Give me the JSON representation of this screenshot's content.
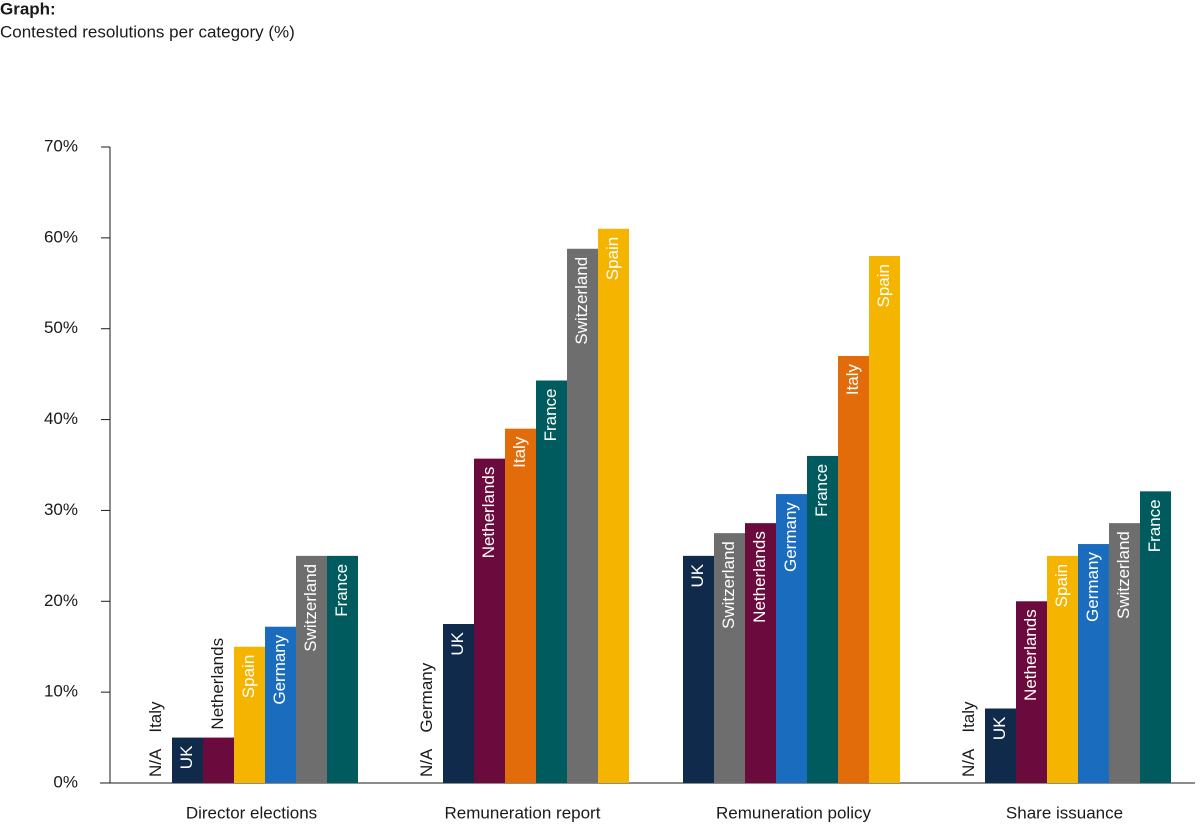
{
  "chart_data": {
    "type": "grouped-bar",
    "title": "Graph:",
    "subtitle": "Contested resolutions per category (%)",
    "ylim": [
      0,
      70
    ],
    "yticks": [
      {
        "value": 0,
        "label": "0%"
      },
      {
        "value": 10,
        "label": "10%"
      },
      {
        "value": 20,
        "label": "20%"
      },
      {
        "value": 30,
        "label": "30%"
      },
      {
        "value": 40,
        "label": "40%"
      },
      {
        "value": 50,
        "label": "50%"
      },
      {
        "value": 60,
        "label": "60%"
      },
      {
        "value": 70,
        "label": "70%"
      }
    ],
    "colors": {
      "UK": "#0f2a4a",
      "Netherlands": "#6b0a3c",
      "Spain": "#f5b400",
      "Germany": "#1a6cbf",
      "Switzerland": "#6e6e6e",
      "France": "#005b5e",
      "Italy": "#e36c0a"
    },
    "groups": [
      {
        "name": "Director elections",
        "bars": [
          {
            "name": "Italy",
            "value": null,
            "value_label": "N/A"
          },
          {
            "name": "UK",
            "value": 5
          },
          {
            "name": "Netherlands",
            "value": 5
          },
          {
            "name": "Spain",
            "value": 15
          },
          {
            "name": "Germany",
            "value": 17.2
          },
          {
            "name": "Switzerland",
            "value": 25
          },
          {
            "name": "France",
            "value": 25
          }
        ]
      },
      {
        "name": "Remuneration report",
        "bars": [
          {
            "name": "Germany",
            "value": null,
            "value_label": "N/A"
          },
          {
            "name": "UK",
            "value": 17.5
          },
          {
            "name": "Netherlands",
            "value": 35.7
          },
          {
            "name": "Italy",
            "value": 39
          },
          {
            "name": "France",
            "value": 44.3
          },
          {
            "name": "Switzerland",
            "value": 58.8
          },
          {
            "name": "Spain",
            "value": 61
          }
        ]
      },
      {
        "name": "Remuneration policy",
        "bars": [
          {
            "name": "UK",
            "value": 25
          },
          {
            "name": "Switzerland",
            "value": 27.5
          },
          {
            "name": "Netherlands",
            "value": 28.6
          },
          {
            "name": "Germany",
            "value": 31.8
          },
          {
            "name": "France",
            "value": 36
          },
          {
            "name": "Italy",
            "value": 47
          },
          {
            "name": "Spain",
            "value": 58
          }
        ]
      },
      {
        "name": "Share issuance",
        "bars": [
          {
            "name": "Italy",
            "value": null,
            "value_label": "N/A"
          },
          {
            "name": "UK",
            "value": 8.2
          },
          {
            "name": "Netherlands",
            "value": 20
          },
          {
            "name": "Spain",
            "value": 25
          },
          {
            "name": "Germany",
            "value": 26.3
          },
          {
            "name": "Switzerland",
            "value": 28.6
          },
          {
            "name": "France",
            "value": 32.1
          }
        ]
      }
    ]
  }
}
